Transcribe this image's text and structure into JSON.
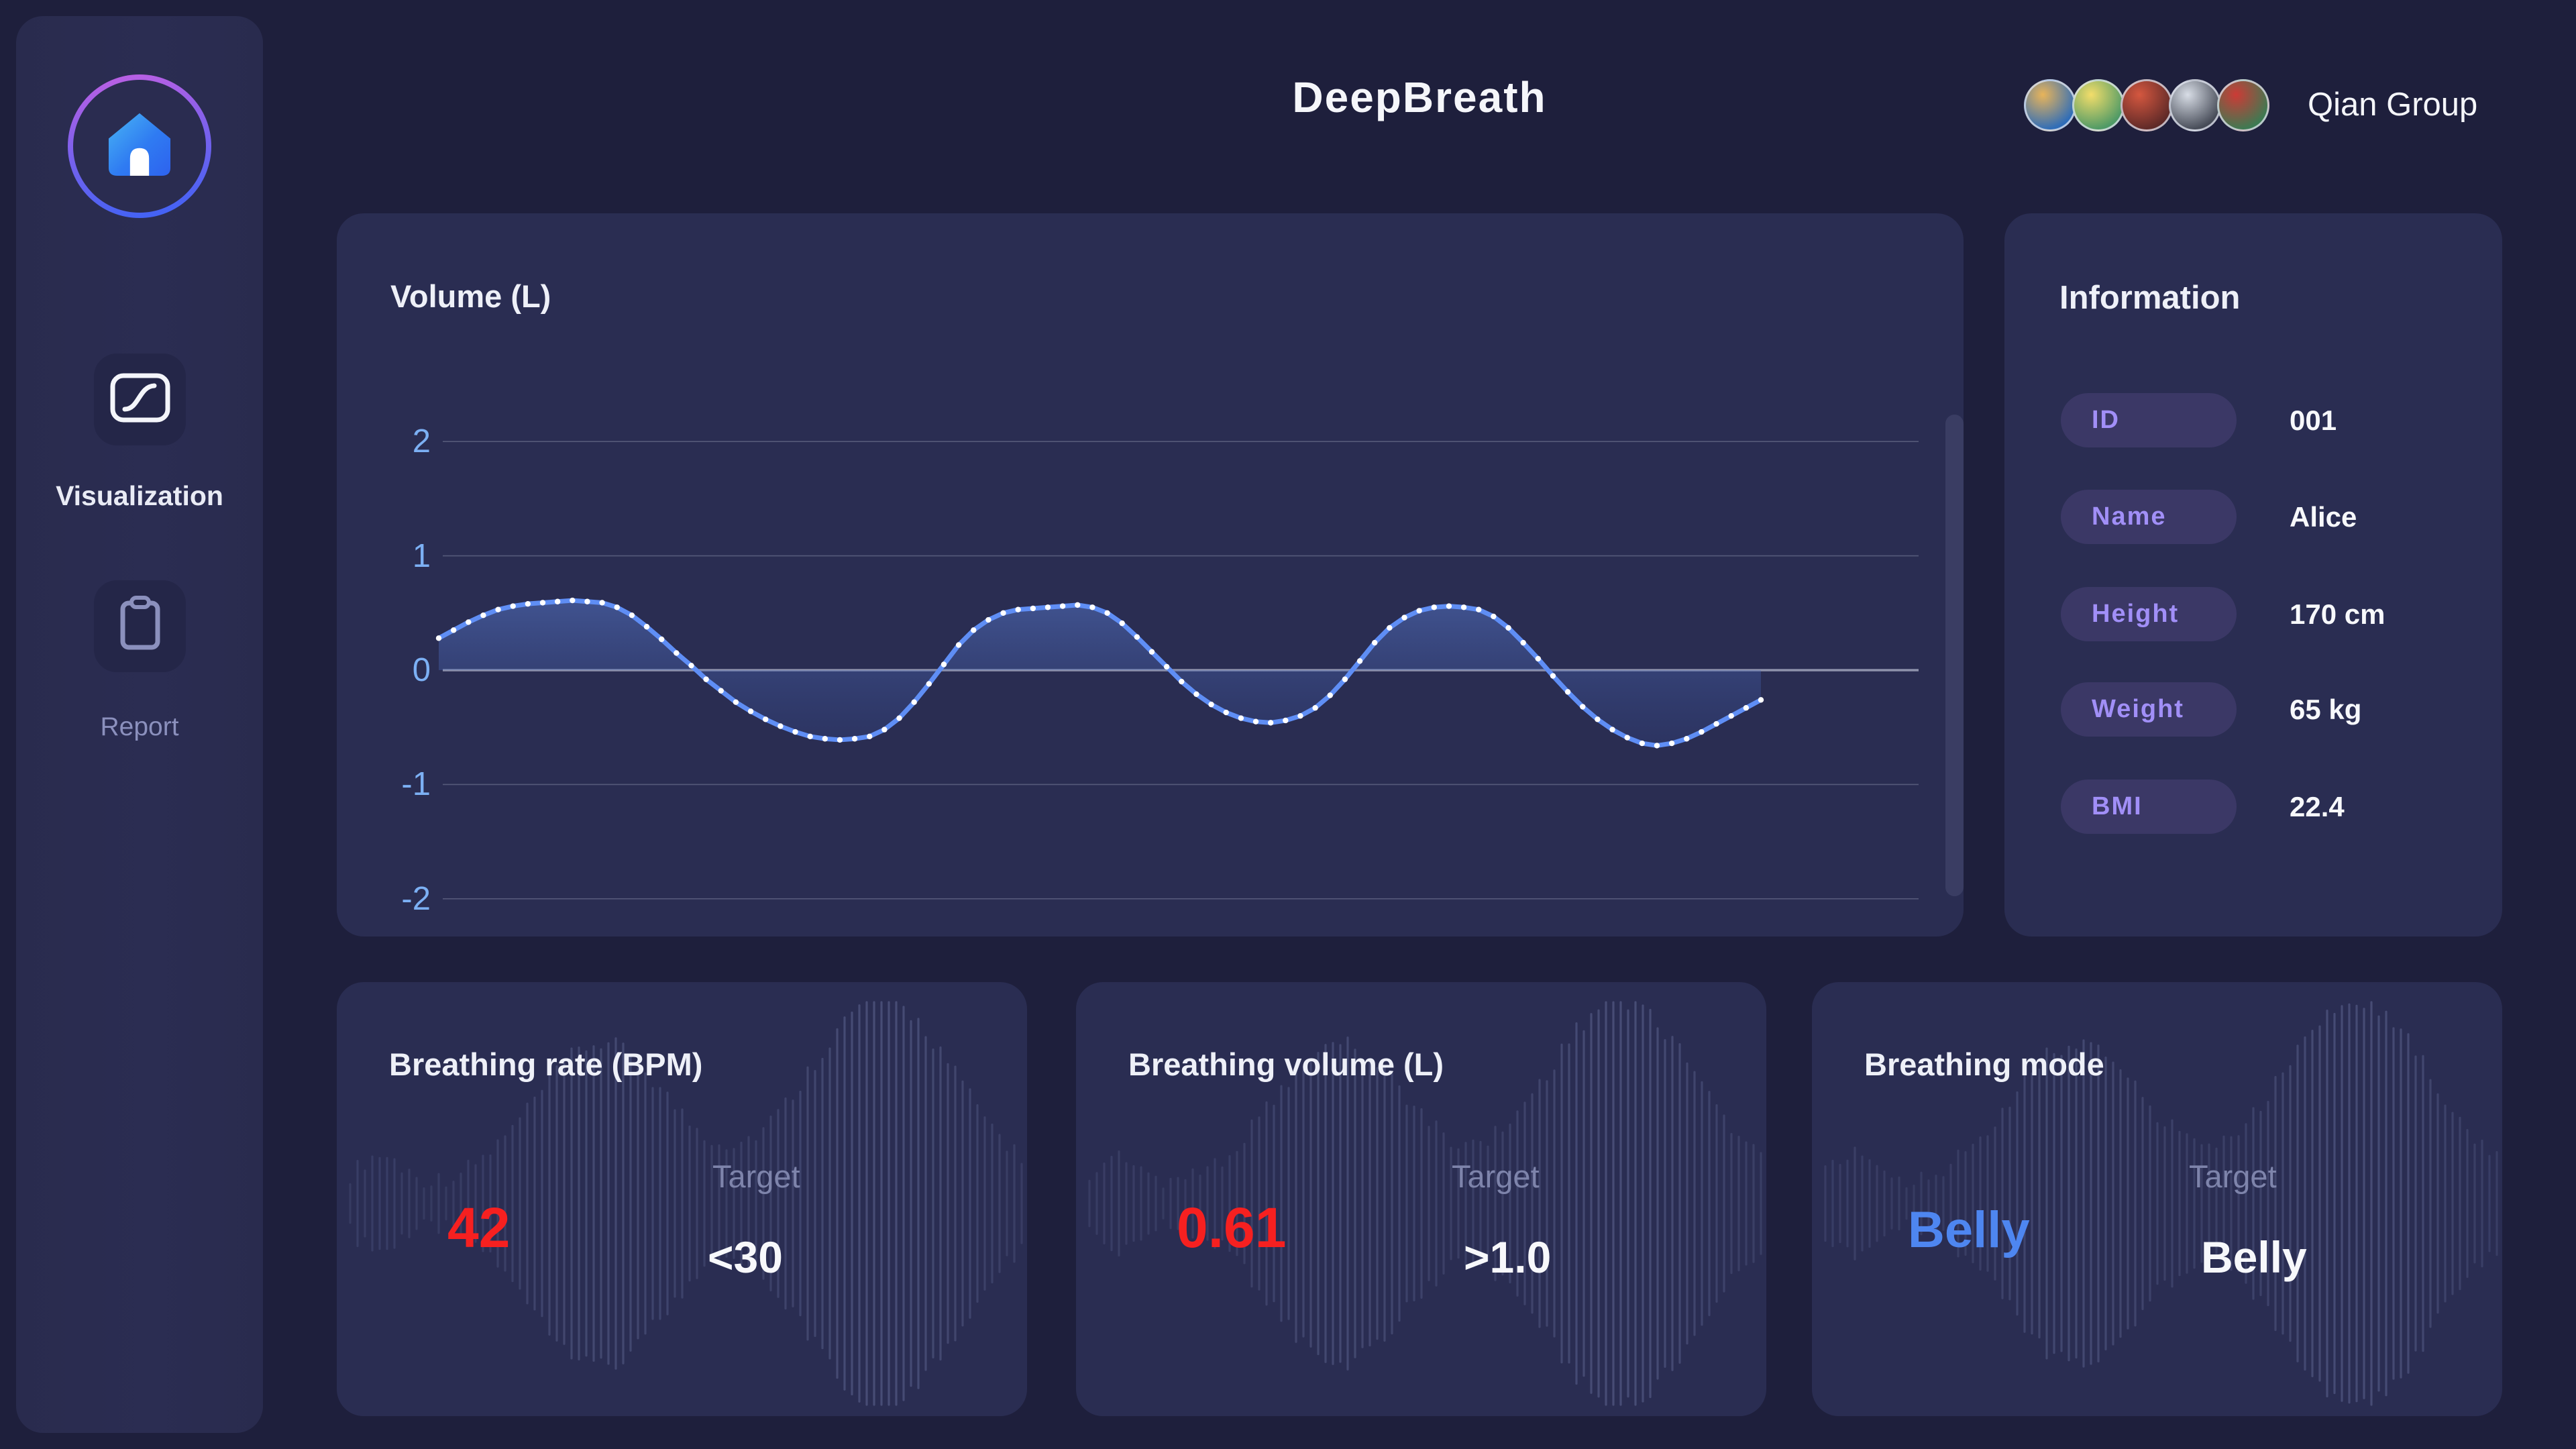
{
  "app": {
    "title": "DeepBreath",
    "group_name": "Qian Group"
  },
  "avatars": [
    {
      "from": "#e8b45a",
      "to": "#2f6db8"
    },
    {
      "from": "#f2dd6a",
      "to": "#4f9a66"
    },
    {
      "from": "#d4573f",
      "to": "#5f2a28"
    },
    {
      "from": "#d8dde6",
      "to": "#474c58"
    },
    {
      "from": "#cc3b36",
      "to": "#3d7a52"
    }
  ],
  "sidebar": {
    "items": [
      {
        "id": "visualization",
        "label": "Visualization"
      },
      {
        "id": "report",
        "label": "Report"
      }
    ]
  },
  "chart_data": {
    "type": "line",
    "title": "Volume (L)",
    "ylabel": "Volume (L)",
    "yticks": [
      2,
      1,
      0,
      -1,
      -2
    ],
    "ylim": [
      -2.6,
      2.6
    ],
    "x_axis_labels": "none",
    "grid": true,
    "legend": false,
    "line_color": "#5f8ef5",
    "marker_color": "#ffffff",
    "area_fill": "gradient to zero baseline",
    "values": [
      0.28,
      0.35,
      0.42,
      0.48,
      0.53,
      0.56,
      0.58,
      0.59,
      0.6,
      0.61,
      0.6,
      0.59,
      0.55,
      0.48,
      0.38,
      0.27,
      0.15,
      0.04,
      -0.08,
      -0.18,
      -0.28,
      -0.36,
      -0.43,
      -0.49,
      -0.54,
      -0.58,
      -0.6,
      -0.61,
      -0.6,
      -0.58,
      -0.52,
      -0.42,
      -0.28,
      -0.12,
      0.05,
      0.22,
      0.35,
      0.44,
      0.5,
      0.53,
      0.54,
      0.55,
      0.56,
      0.57,
      0.55,
      0.5,
      0.41,
      0.29,
      0.16,
      0.03,
      -0.1,
      -0.21,
      -0.3,
      -0.37,
      -0.42,
      -0.45,
      -0.46,
      -0.44,
      -0.4,
      -0.33,
      -0.22,
      -0.08,
      0.08,
      0.24,
      0.37,
      0.46,
      0.52,
      0.55,
      0.56,
      0.55,
      0.53,
      0.47,
      0.37,
      0.24,
      0.1,
      -0.05,
      -0.19,
      -0.32,
      -0.43,
      -0.52,
      -0.59,
      -0.64,
      -0.66,
      -0.64,
      -0.6,
      -0.54,
      -0.47,
      -0.4,
      -0.33,
      -0.26
    ]
  },
  "info": {
    "title": "Information",
    "rows": [
      {
        "label": "ID",
        "value": "001"
      },
      {
        "label": "Name",
        "value": "Alice"
      },
      {
        "label": "Height",
        "value": "170 cm"
      },
      {
        "label": "Weight",
        "value": "65 kg"
      },
      {
        "label": "BMI",
        "value": "22.4"
      }
    ]
  },
  "cards": [
    {
      "title": "Breathing rate (BPM)",
      "value": "42",
      "value_color": "#f62020",
      "target_label": "Target",
      "target_value": "<30"
    },
    {
      "title": "Breathing volume (L)",
      "value": "0.61",
      "value_color": "#f62020",
      "target_label": "Target",
      "target_value": ">1.0"
    },
    {
      "title": "Breathing mode",
      "value": "Belly",
      "value_color": "#4e86f0",
      "target_label": "Target",
      "target_value": "Belly"
    }
  ],
  "colors": {
    "background": "#1e1f3c",
    "card": "#2a2d52",
    "sidebar": "#2a2c50",
    "accent_blue": "#4e86f0",
    "alert_red": "#f62020",
    "tick_blue": "#7cb0f4",
    "pill_purple": "#a18ff7",
    "muted": "#7e84ab"
  }
}
